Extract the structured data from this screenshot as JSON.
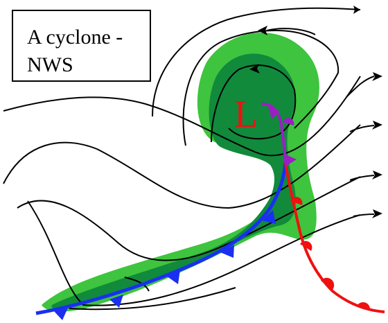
{
  "caption": {
    "line1": "A cyclone -",
    "line2": "NWS"
  },
  "low_marker": {
    "label": "L"
  },
  "colors": {
    "background": "#ffffff",
    "precip_outer": "#3ec43e",
    "precip_core": "#118a3c",
    "streamline": "#000000",
    "low_label": "#ee1111",
    "cold_front": "#1a2ff0",
    "warm_front": "#ee1111",
    "occluded_front": "#9b1fc4",
    "caption_border": "#000000"
  },
  "icons": [
    "streamline-arrow-icon",
    "cold-front-triangle-icon",
    "warm-front-semicircle-icon",
    "occluded-front-symbol-icon"
  ]
}
